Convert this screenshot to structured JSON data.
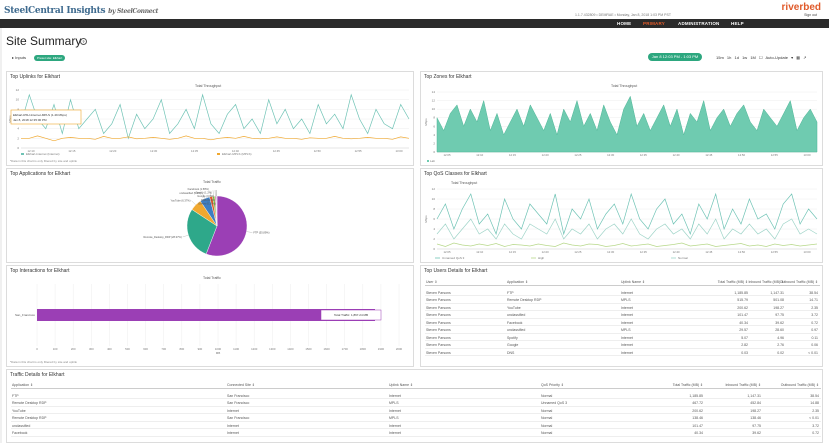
{
  "app": {
    "logo": "SteelCentral",
    "logo_suffix": "Insights",
    "logo_by": "by SteelConnect",
    "brand": "riverbed",
    "userinfo": "1.1.7.432809 • DEMRAE • Monday, Jan 8, 2018 1:03 PM PST",
    "signout": "Sign out"
  },
  "nav": [
    {
      "label": "HOME",
      "active": false
    },
    {
      "label": "PRIMARY",
      "active": true
    },
    {
      "label": "ADMINISTRATION",
      "active": false
    },
    {
      "label": "HELP",
      "active": false
    }
  ],
  "page": {
    "title": "Site Summary",
    "inputs_label": "Inputs",
    "inputs_pill": "Preset site: Elkhart",
    "daterange": "Jan 8 12:03 PM - 1:03 PM",
    "ranges": [
      "15m",
      "1h",
      "1d",
      "1w",
      "1M"
    ],
    "auto_update": "Auto-Update"
  },
  "uplinks": {
    "title": "Top Uplinks for Elkhart",
    "chart_title": "Total Throughput",
    "ylabel": "Mbps",
    "yticks": [
      "12",
      "10",
      "8",
      "6",
      "4",
      "2",
      "0"
    ],
    "xticks": [
      "12:10",
      "12:15",
      "12:20",
      "12:30",
      "12:35",
      "12:40",
      "12:45",
      "12:50",
      "12:55",
      "13:00"
    ],
    "tooltip_line1": "Elkhart-RSU-Internet-MPLS (1.49 Mbps)",
    "tooltip_line2": "Jan 8, 2018 12:35:00 PM",
    "legend": [
      "Elkhart-Internet (Internet)",
      "Elkhart-MPLS (MPLS)"
    ],
    "note": "*Data in this chart is only filtered by site and uplink"
  },
  "zones": {
    "title": "Top Zones for Elkhart",
    "chart_title": "Total Throughput",
    "ylabel": "Mbps",
    "yticks": [
      "14",
      "12",
      "10",
      "8",
      "6",
      "4",
      "2",
      "0"
    ],
    "xticks": [
      "12:05",
      "12:10",
      "12:15",
      "12:20",
      "12:25",
      "12:30",
      "12:35",
      "12:40",
      "12:45",
      "12:50",
      "12:55",
      "13:00"
    ],
    "legend": [
      "Lab"
    ]
  },
  "apps": {
    "title": "Top Applications for Elkhart",
    "chart_title": "Total Traffic",
    "slices": [
      {
        "label": "FTP (55.89%)",
        "value": 55.89,
        "color": "#9b3fb5"
      },
      {
        "label": "Remote_Desktop_RDP (28.37%)",
        "value": 28.37,
        "color": "#2ea88a"
      },
      {
        "label": "YouTube (6.37%)",
        "value": 6.37,
        "color": "#f0a830"
      },
      {
        "label": "unclassified (5.4%)",
        "value": 5.4,
        "color": "#3d7ec2"
      },
      {
        "label": "Facebook (1.58%)",
        "value": 1.58,
        "color": "#e05a2a"
      },
      {
        "label": "Spotify (1.2%)",
        "value": 1.2,
        "color": "#7ac143"
      },
      {
        "label": "Google (0.6%)",
        "value": 0.6,
        "color": "#d4447a"
      },
      {
        "label": "DNS (0.3%)",
        "value": 0.3,
        "color": "#1a5e9c"
      },
      {
        "label": "Others (0.29%)",
        "value": 0.29,
        "color": "#aaaaaa"
      }
    ]
  },
  "qos": {
    "title": "Top QoS Classes for Elkhart",
    "chart_title": "Total Throughput",
    "ylabel": "Mbps",
    "yticks": [
      "12",
      "10",
      "8",
      "6",
      "4",
      "2",
      "0"
    ],
    "xticks": [
      "12:05",
      "12:10",
      "12:15",
      "12:20",
      "12:25",
      "12:30",
      "12:35",
      "12:40",
      "12:45",
      "12:50",
      "12:55",
      "13:00"
    ],
    "legend": [
      "Unnamed QoS 3",
      "High",
      "Normal"
    ]
  },
  "interactions": {
    "title": "Top Interactions for Elkhart",
    "chart_title": "Total Traffic",
    "bar_label": "San_Francisco",
    "tooltip": "Total Traffic: 1,867.24 MB",
    "xticks": [
      "0",
      "100",
      "200",
      "300",
      "400",
      "500",
      "600",
      "700",
      "800",
      "900",
      "1000",
      "1100",
      "1200",
      "1300",
      "1400",
      "1500",
      "1600",
      "1700",
      "1800",
      "1900",
      "2000"
    ],
    "xlabel": "MB",
    "value": 1867.24,
    "xmax": 2000,
    "note": "*Data in this chart is only filtered by site and uplink"
  },
  "users": {
    "title": "Top Users Details for Elkhart",
    "headers": [
      "User",
      "Application",
      "Uplink Name",
      "Total Traffic (MB)",
      "Inbound Traffic (MB)",
      "Outbound Traffic (MB)"
    ],
    "rows": [
      [
        "Steven Parsons",
        "FTP",
        "Internet",
        "1,185.85",
        "1,147.31",
        "38.54"
      ],
      [
        "Steven Parsons",
        "Remote Desktop RDP",
        "MPLS",
        "515.79",
        "501.08",
        "14.71"
      ],
      [
        "Steven Parsons",
        "YouTube",
        "Internet",
        "200.62",
        "198.27",
        "2.35"
      ],
      [
        "Steven Parsons",
        "unclassified",
        "Internet",
        "101.47",
        "97.75",
        "3.72"
      ],
      [
        "Steven Parsons",
        "Facebook",
        "Internet",
        "40.34",
        "39.62",
        "0.72"
      ],
      [
        "Steven Parsons",
        "unclassified",
        "MPLS",
        "29.57",
        "28.60",
        "0.97"
      ],
      [
        "Steven Parsons",
        "Spotify",
        "Internet",
        "5.07",
        "4.96",
        "0.11"
      ],
      [
        "Steven Parsons",
        "Google",
        "Internet",
        "2.82",
        "2.76",
        "0.06"
      ],
      [
        "Steven Parsons",
        "DNS",
        "Internet",
        "0.03",
        "0.02",
        "< 0.01"
      ]
    ]
  },
  "traffic": {
    "title": "Traffic Details for Elkhart",
    "headers": [
      "Application",
      "Connected Site",
      "Uplink Name",
      "QoS Priority",
      "Total Traffic (MB)",
      "Inbound Traffic (MB)",
      "Outbound Traffic (MB)"
    ],
    "rows": [
      [
        "FTP",
        "San Francisco",
        "Internet",
        "Normal",
        "1,185.85",
        "1,147.31",
        "38.54"
      ],
      [
        "Remote Desktop RDP",
        "San Francisco",
        "MPLS",
        "Unnamed QoS 3",
        "467.72",
        "452.84",
        "14.88"
      ],
      [
        "YouTube",
        "Internet",
        "Internet",
        "Normal",
        "200.62",
        "198.27",
        "2.35"
      ],
      [
        "Remote Desktop RDP",
        "San Francisco",
        "MPLS",
        "Normal",
        "138.46",
        "138.46",
        "< 0.01"
      ],
      [
        "unclassified",
        "Internet",
        "Internet",
        "Normal",
        "101.47",
        "97.75",
        "3.72"
      ],
      [
        "Facebook",
        "Internet",
        "Internet",
        "Normal",
        "40.34",
        "39.62",
        "0.72"
      ]
    ]
  },
  "chart_data": [
    {
      "type": "line",
      "title": "Total Throughput",
      "ylabel": "Mbps",
      "ylim": [
        0,
        12
      ],
      "series": [
        {
          "name": "Elkhart-Internet (Internet)",
          "color": "#6fc3b5",
          "values": [
            5,
            11,
            6,
            4,
            9,
            3,
            10,
            4,
            6,
            8,
            3,
            5,
            9,
            2,
            7,
            4,
            6,
            10,
            3,
            5,
            8,
            4,
            11,
            5,
            3,
            7,
            9,
            4,
            6,
            3,
            10,
            5,
            8,
            4,
            6,
            3,
            9,
            5,
            7,
            4,
            11,
            6,
            3,
            8,
            5,
            4,
            9,
            6
          ]
        },
        {
          "name": "Elkhart-MPLS (MPLS)",
          "color": "#f0a830",
          "values": [
            2,
            2,
            2.5,
            2,
            1.5,
            2,
            2.2,
            2,
            2,
            1.8,
            2.4,
            2,
            2,
            2.3,
            1.9,
            2,
            2.2,
            2,
            1.8,
            2,
            2.5,
            2,
            2,
            1.7,
            2,
            2.2,
            2,
            2.4,
            2,
            1.9,
            2,
            2.3,
            2,
            2,
            1.8,
            2.1,
            2,
            2,
            2.4,
            2,
            1.9,
            2,
            2.2,
            2,
            2,
            1.8,
            2.3,
            2
          ]
        }
      ]
    },
    {
      "type": "area",
      "title": "Total Throughput",
      "ylabel": "Mbps",
      "ylim": [
        0,
        14
      ],
      "series": [
        {
          "name": "Lab",
          "color": "#6fcbb0",
          "values": [
            8,
            5,
            9,
            11,
            6,
            10,
            7,
            12,
            5,
            9,
            4,
            7,
            10,
            6,
            11,
            8,
            5,
            9,
            4,
            10,
            7,
            12,
            6,
            9,
            5,
            11,
            7,
            4,
            10,
            13,
            6,
            9,
            5,
            8,
            11,
            6,
            10,
            4,
            9,
            7,
            12,
            5,
            8,
            10,
            6,
            9,
            11,
            7,
            5,
            10,
            8,
            6,
            9,
            12,
            5,
            8,
            10,
            7
          ]
        }
      ]
    },
    {
      "type": "pie",
      "title": "Total Traffic",
      "categories": [
        "FTP",
        "Remote_Desktop_RDP",
        "YouTube",
        "unclassified",
        "Facebook",
        "Spotify",
        "Google",
        "DNS",
        "Others"
      ],
      "values": [
        55.89,
        28.37,
        6.37,
        5.4,
        1.58,
        1.2,
        0.6,
        0.3,
        0.29
      ]
    },
    {
      "type": "line",
      "title": "Total Throughput",
      "ylabel": "Mbps",
      "ylim": [
        0,
        12
      ],
      "series": [
        {
          "name": "Unnamed QoS 3",
          "color": "#6fc3b5",
          "values": [
            6,
            9,
            4,
            8,
            11,
            5,
            7,
            3,
            10,
            6,
            4,
            9,
            7,
            5,
            11,
            3,
            8,
            6,
            10,
            4,
            7,
            9,
            5,
            11,
            6,
            4,
            8,
            10,
            5,
            7,
            3,
            9,
            6,
            11,
            4,
            8,
            5,
            10,
            6,
            7,
            4,
            9,
            11,
            5,
            8,
            6
          ]
        },
        {
          "name": "High",
          "color": "#b7d88a",
          "values": [
            1,
            0.5,
            1.2,
            0.8,
            0.6,
            1,
            0.7,
            1.1,
            0.5,
            0.9,
            0.8,
            0.6,
            1,
            0.7,
            0.5,
            1.2,
            0.8,
            0.6,
            1,
            0.9,
            0.5,
            0.7,
            1.1,
            0.6,
            0.8,
            1,
            0.5,
            0.7,
            0.9,
            1.2,
            0.6,
            0.8,
            1,
            0.5,
            0.7,
            0.9,
            1.1,
            0.6,
            0.8,
            0.5,
            1,
            0.7,
            0.9,
            0.6,
            0.8,
            1
          ]
        },
        {
          "name": "Normal",
          "color": "#9fd4c8",
          "values": [
            3,
            5,
            2,
            4,
            6,
            3,
            4,
            2,
            5,
            3,
            2,
            5,
            4,
            3,
            6,
            2,
            4,
            3,
            5,
            2,
            4,
            5,
            3,
            6,
            3,
            2,
            4,
            5,
            3,
            4,
            2,
            5,
            3,
            6,
            2,
            4,
            3,
            5,
            3,
            4,
            2,
            5,
            6,
            3,
            4,
            3
          ]
        }
      ]
    },
    {
      "type": "bar",
      "title": "Total Traffic",
      "categories": [
        "San_Francisco"
      ],
      "values": [
        1867.24
      ],
      "xlabel": "MB",
      "xlim": [
        0,
        2000
      ]
    }
  ]
}
